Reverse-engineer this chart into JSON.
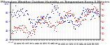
{
  "title": "Milwaukee Weather Outdoor Humidity vs Temperature Every 5 Minutes",
  "title_fontsize": 3.2,
  "blue_color": "#0000dd",
  "red_color": "#cc0000",
  "background_color": "#ffffff",
  "grid_color": "#bbbbbb",
  "ylim_left": [
    20,
    100
  ],
  "ylim_right": [
    20,
    80
  ],
  "tick_fontsize": 2.5,
  "dot_size": 0.5,
  "n_points": 180,
  "n_xticks": 35
}
